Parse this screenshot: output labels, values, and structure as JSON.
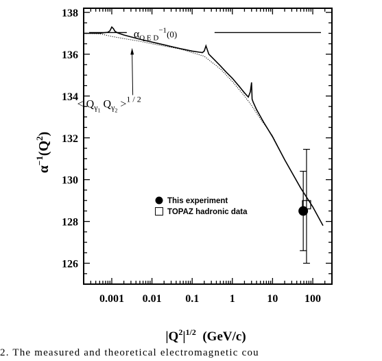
{
  "chart_data": {
    "type": "line",
    "xscale": "log",
    "xlim": [
      0.0002,
      300
    ],
    "ylim": [
      125,
      138.2
    ],
    "xticks": [
      {
        "value": 0.001,
        "label": "0.001"
      },
      {
        "value": 0.01,
        "label": "0.01"
      },
      {
        "value": 0.1,
        "label": "0.1"
      },
      {
        "value": 1,
        "label": "1"
      },
      {
        "value": 10,
        "label": "10"
      },
      {
        "value": 100,
        "label": "100"
      }
    ],
    "yticks": [
      {
        "value": 126,
        "label": "126"
      },
      {
        "value": 128,
        "label": "128"
      },
      {
        "value": 130,
        "label": "130"
      },
      {
        "value": 132,
        "label": "132"
      },
      {
        "value": 134,
        "label": "134"
      },
      {
        "value": 136,
        "label": "136"
      },
      {
        "value": 138,
        "label": "138"
      }
    ],
    "xlabel": {
      "main": "|Q",
      "sup1": "2",
      "mid": "|",
      "sup2": "1/2",
      "tail": "  (GeV/c)"
    },
    "ylabel": {
      "alpha": "α",
      "sup": "−1",
      "rest": "(Q",
      "sup2": "2",
      "close": ")"
    },
    "reference_line": {
      "value": 137.036,
      "x_from": 0.0002,
      "x_to": 160
    },
    "qed_label": {
      "alpha": "α",
      "sub": "Q E D",
      "sup": "−1",
      "arg": "(0)",
      "x": 0.0035,
      "y": 137.0
    },
    "annotation": {
      "text_open": "< Q",
      "g1": "γ",
      "s1": "1",
      "mid": " Q",
      "g2": "γ",
      "s2": "2",
      "close": " >",
      "sup": "1 / 2",
      "text_x": 0.0012,
      "text_y": 133.65,
      "arrow_to_x": 0.0032,
      "arrow_to_y": 136.3
    },
    "series": [
      {
        "style": "solid",
        "x": [
          0.0002,
          0.0005,
          0.0008,
          0.0009,
          0.001,
          0.0011,
          0.0012,
          0.0014,
          0.002,
          0.005,
          0.01,
          0.02,
          0.05,
          0.1,
          0.15,
          0.18,
          0.2,
          0.22,
          0.26,
          0.35,
          0.5,
          0.7,
          1.0,
          1.5,
          2.0,
          2.5,
          2.8,
          3.0,
          3.1,
          3.3,
          4.0,
          6.0,
          10,
          20,
          50,
          100,
          180
        ],
        "y": [
          137.0,
          137.0,
          137.05,
          137.12,
          137.3,
          137.22,
          137.1,
          137.02,
          136.92,
          136.72,
          136.58,
          136.45,
          136.27,
          136.15,
          136.1,
          136.08,
          136.15,
          136.4,
          136.0,
          135.75,
          135.45,
          135.15,
          134.85,
          134.45,
          134.15,
          133.95,
          134.2,
          134.65,
          133.85,
          133.7,
          133.35,
          132.75,
          132.05,
          130.95,
          129.6,
          128.7,
          127.8
        ]
      },
      {
        "style": "dotted",
        "x": [
          0.0002,
          0.0005,
          0.001,
          0.002,
          0.005,
          0.01,
          0.05,
          0.1,
          0.2,
          0.5,
          1.0,
          2.0,
          3.0,
          5.0,
          10,
          20,
          50,
          100
        ],
        "y": [
          137.0,
          136.98,
          136.85,
          136.75,
          136.62,
          136.5,
          136.25,
          136.08,
          135.9,
          135.3,
          134.7,
          134.0,
          133.55,
          132.9,
          132.1,
          130.95,
          129.6,
          128.7
        ]
      }
    ],
    "points": [
      {
        "marker": "filled-circle",
        "x": 58,
        "y": 128.5,
        "yerr": [
          126.6,
          130.4
        ]
      },
      {
        "marker": "open-square",
        "x": 70,
        "y": 128.8,
        "yerr": [
          126.0,
          131.45
        ]
      }
    ],
    "legend": [
      {
        "marker": "filled-circle",
        "label": "This experiment"
      },
      {
        "marker": "open-square",
        "label": "TOPAZ hadronic data"
      }
    ],
    "caption_text": "2.   The   measured   and   theoretical   electromagnetic   cou"
  }
}
